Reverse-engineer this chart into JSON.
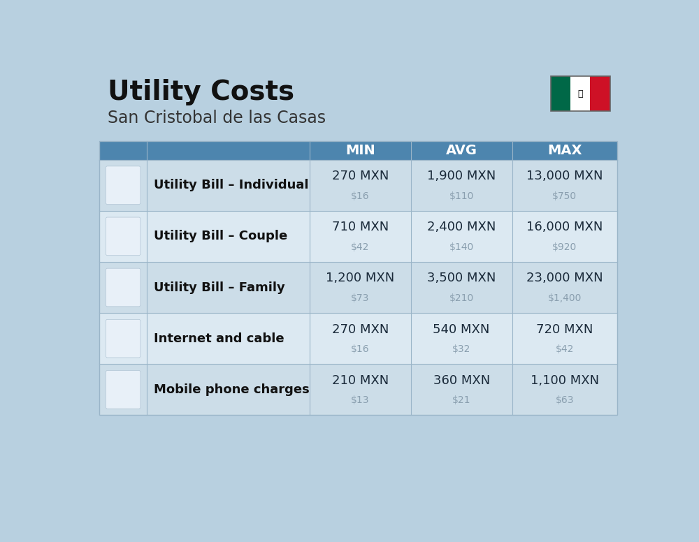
{
  "title": "Utility Costs",
  "subtitle": "San Cristobal de las Casas",
  "background_color": "#b8d0e0",
  "header_color": "#4d85ae",
  "header_left_color": "#4d85ae",
  "header_text_color": "#ffffff",
  "row_color_odd": "#ccdde8",
  "row_color_even": "#dce9f2",
  "divider_color": "#9ab5c8",
  "col_headers": [
    "MIN",
    "AVG",
    "MAX"
  ],
  "rows": [
    {
      "label": "Utility Bill – Individual",
      "min_mxn": "270 MXN",
      "min_usd": "$16",
      "avg_mxn": "1,900 MXN",
      "avg_usd": "$110",
      "max_mxn": "13,000 MXN",
      "max_usd": "$750"
    },
    {
      "label": "Utility Bill – Couple",
      "min_mxn": "710 MXN",
      "min_usd": "$42",
      "avg_mxn": "2,400 MXN",
      "avg_usd": "$140",
      "max_mxn": "16,000 MXN",
      "max_usd": "$920"
    },
    {
      "label": "Utility Bill – Family",
      "min_mxn": "1,200 MXN",
      "min_usd": "$73",
      "avg_mxn": "3,500 MXN",
      "avg_usd": "$210",
      "max_mxn": "23,000 MXN",
      "max_usd": "$1,400"
    },
    {
      "label": "Internet and cable",
      "min_mxn": "270 MXN",
      "min_usd": "$16",
      "avg_mxn": "540 MXN",
      "avg_usd": "$32",
      "max_mxn": "720 MXN",
      "max_usd": "$42"
    },
    {
      "label": "Mobile phone charges",
      "min_mxn": "210 MXN",
      "min_usd": "$13",
      "avg_mxn": "360 MXN",
      "avg_usd": "$21",
      "max_mxn": "1,100 MXN",
      "max_usd": "$63"
    }
  ],
  "title_fontsize": 28,
  "subtitle_fontsize": 17,
  "header_fontsize": 14,
  "label_fontsize": 13,
  "value_fontsize": 13,
  "usd_fontsize": 10,
  "usd_color": "#8a9faf",
  "value_color": "#1a2a3a",
  "label_color": "#111111",
  "flag_green": "#006847",
  "flag_white": "#ffffff",
  "flag_red": "#ce1126"
}
